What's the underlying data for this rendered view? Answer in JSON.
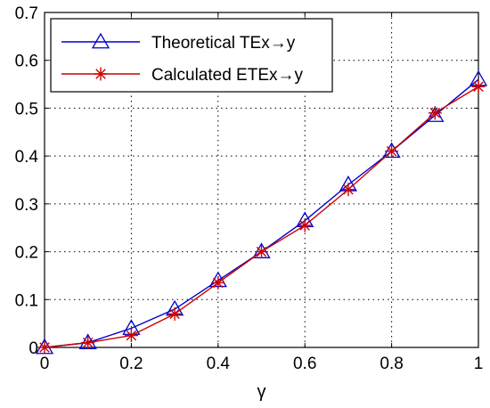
{
  "chart_data": {
    "type": "line",
    "xlabel": "γ",
    "ylabel": "",
    "xlim": [
      0,
      1
    ],
    "ylim": [
      0,
      0.7
    ],
    "x_ticks": [
      "0",
      "0.2",
      "0.4",
      "0.6",
      "0.8",
      "1"
    ],
    "y_ticks": [
      "0",
      "0.1",
      "0.2",
      "0.3",
      "0.4",
      "0.5",
      "0.6",
      "0.7"
    ],
    "grid": true,
    "legend_position": "top-left",
    "x": [
      0,
      0.1,
      0.2,
      0.3,
      0.4,
      0.5,
      0.6,
      0.7,
      0.8,
      0.9,
      1.0
    ],
    "series": [
      {
        "name": "Theoretical TEx→y",
        "color": "#0000cc",
        "marker": "triangle",
        "values": [
          0.0,
          0.01,
          0.04,
          0.08,
          0.14,
          0.2,
          0.265,
          0.34,
          0.41,
          0.485,
          0.56
        ]
      },
      {
        "name": "Calculated ETEx→y",
        "color": "#cc0000",
        "marker": "asterisk",
        "values": [
          0.0,
          0.01,
          0.025,
          0.07,
          0.135,
          0.2,
          0.255,
          0.33,
          0.41,
          0.49,
          0.545
        ]
      }
    ]
  }
}
